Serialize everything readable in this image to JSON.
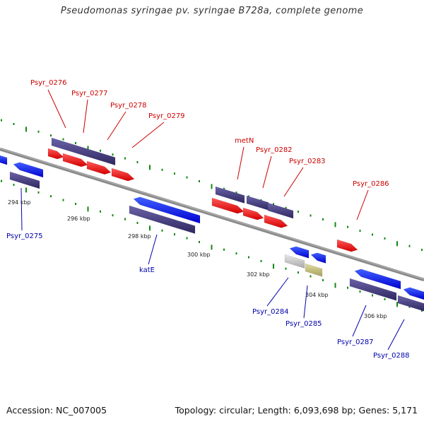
{
  "title": "Pseudomonas syringae pv. syringae B728a, complete genome",
  "footer": {
    "accession": "Accession: NC_007005",
    "summary": "Topology: circular; Length: 6,093,698 bp; Genes: 5,171"
  },
  "colors": {
    "forward_cds": "#ff0000",
    "reverse_cds": "#0000ff",
    "gene_bar": "#4a4080",
    "gene_label_forward": "#cc0000",
    "gene_label_reverse": "#0000aa",
    "backbone": "#8a8a8a",
    "tick": "#118811"
  },
  "axis": {
    "unit": "kbp",
    "tick_labels": [
      "294 kbp",
      "296 kbp",
      "298 kbp",
      "300 kbp",
      "302 kbp",
      "304 kbp",
      "306 kbp"
    ]
  },
  "genes_forward": [
    "Psyr_0276",
    "Psyr_0277",
    "Psyr_0278",
    "Psyr_0279",
    "metN",
    "Psyr_0282",
    "Psyr_0283",
    "Psyr_0286"
  ],
  "genes_reverse": [
    "Psyr_0275",
    "katE",
    "Psyr_0284",
    "Psyr_0285",
    "Psyr_0287",
    "Psyr_0288"
  ]
}
